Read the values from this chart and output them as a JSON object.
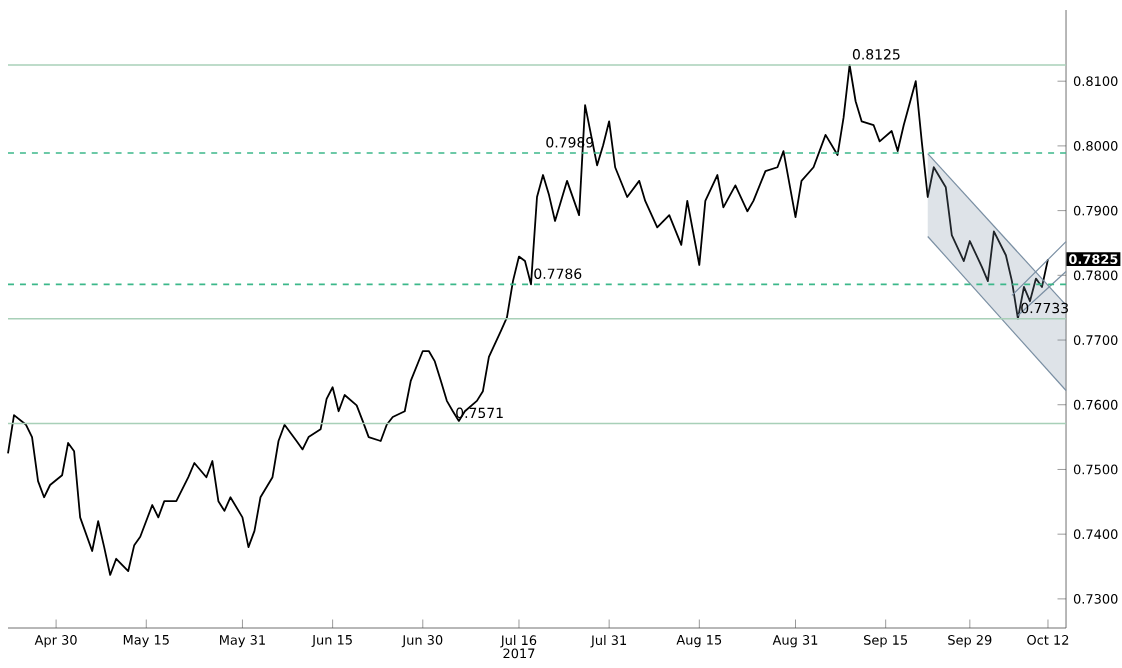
{
  "chart_data": {
    "type": "line",
    "x": [
      "2017-04-22",
      "2017-04-23",
      "2017-04-25",
      "2017-04-26",
      "2017-04-27",
      "2017-04-28",
      "2017-04-29",
      "2017-05-01",
      "2017-05-02",
      "2017-05-03",
      "2017-05-04",
      "2017-05-06",
      "2017-05-07",
      "2017-05-08",
      "2017-05-09",
      "2017-05-10",
      "2017-05-12",
      "2017-05-13",
      "2017-05-14",
      "2017-05-16",
      "2017-05-17",
      "2017-05-18",
      "2017-05-20",
      "2017-05-22",
      "2017-05-23",
      "2017-05-25",
      "2017-05-26",
      "2017-05-27",
      "2017-05-28",
      "2017-05-29",
      "2017-05-31",
      "2017-06-01",
      "2017-06-02",
      "2017-06-03",
      "2017-06-05",
      "2017-06-06",
      "2017-06-07",
      "2017-06-09",
      "2017-06-10",
      "2017-06-11",
      "2017-06-13",
      "2017-06-14",
      "2017-06-15",
      "2017-06-16",
      "2017-06-17",
      "2017-06-19",
      "2017-06-20",
      "2017-06-21",
      "2017-06-23",
      "2017-06-24",
      "2017-06-25",
      "2017-06-27",
      "2017-06-28",
      "2017-06-30",
      "2017-07-01",
      "2017-07-02",
      "2017-07-03",
      "2017-07-04",
      "2017-07-05",
      "2017-07-06",
      "2017-07-07",
      "2017-07-09",
      "2017-07-10",
      "2017-07-11",
      "2017-07-13",
      "2017-07-14",
      "2017-07-15",
      "2017-07-16",
      "2017-07-17",
      "2017-07-18",
      "2017-07-19",
      "2017-07-20",
      "2017-07-21",
      "2017-07-22",
      "2017-07-24",
      "2017-07-26",
      "2017-07-27",
      "2017-07-29",
      "2017-07-30",
      "2017-07-31",
      "2017-08-01",
      "2017-08-03",
      "2017-08-05",
      "2017-08-06",
      "2017-08-08",
      "2017-08-10",
      "2017-08-12",
      "2017-08-13",
      "2017-08-15",
      "2017-08-16",
      "2017-08-18",
      "2017-08-19",
      "2017-08-21",
      "2017-08-23",
      "2017-08-24",
      "2017-08-26",
      "2017-08-28",
      "2017-08-29",
      "2017-08-31",
      "2017-09-01",
      "2017-09-03",
      "2017-09-05",
      "2017-09-07",
      "2017-09-08",
      "2017-09-09",
      "2017-09-10",
      "2017-09-11",
      "2017-09-13",
      "2017-09-14",
      "2017-09-16",
      "2017-09-17",
      "2017-09-18",
      "2017-09-20",
      "2017-09-21",
      "2017-09-22",
      "2017-09-23",
      "2017-09-25",
      "2017-09-26",
      "2017-09-28",
      "2017-09-29",
      "2017-10-01",
      "2017-10-02",
      "2017-10-03",
      "2017-10-05",
      "2017-10-06",
      "2017-10-07",
      "2017-10-08",
      "2017-10-09",
      "2017-10-10",
      "2017-10-11",
      "2017-10-12"
    ],
    "series": [
      {
        "color": "#000000",
        "values": [
          0.7525,
          0.7584,
          0.7569,
          0.755,
          0.7482,
          0.7457,
          0.7476,
          0.7491,
          0.7541,
          0.7528,
          0.7426,
          0.7374,
          0.742,
          0.738,
          0.7337,
          0.7362,
          0.7343,
          0.7383,
          0.7396,
          0.7445,
          0.7426,
          0.7451,
          0.7451,
          0.7488,
          0.751,
          0.7488,
          0.7513,
          0.7451,
          0.7436,
          0.7457,
          0.7426,
          0.738,
          0.7405,
          0.7457,
          0.7488,
          0.7544,
          0.7569,
          0.7544,
          0.7531,
          0.755,
          0.7562,
          0.7609,
          0.7627,
          0.759,
          0.7615,
          0.7599,
          0.7575,
          0.755,
          0.7544,
          0.7569,
          0.7581,
          0.759,
          0.7637,
          0.7683,
          0.7683,
          0.7667,
          0.7637,
          0.7606,
          0.759,
          0.7575,
          0.759,
          0.7606,
          0.7621,
          0.7674,
          0.7714,
          0.7735,
          0.7791,
          0.7829,
          0.7822,
          0.7786,
          0.7921,
          0.7955,
          0.7924,
          0.7884,
          0.7946,
          0.7893,
          0.8063,
          0.797,
          0.8001,
          0.8038,
          0.7967,
          0.7921,
          0.7946,
          0.7915,
          0.7874,
          0.7893,
          0.7847,
          0.7915,
          0.7816,
          0.7915,
          0.7955,
          0.7905,
          0.7939,
          0.7899,
          0.7915,
          0.7961,
          0.7967,
          0.7992,
          0.789,
          0.7946,
          0.7967,
          0.8017,
          0.7986,
          0.8044,
          0.8125,
          0.8069,
          0.8038,
          0.8032,
          0.8007,
          0.8023,
          0.7992,
          0.8032,
          0.81,
          0.8007,
          0.7921,
          0.7967,
          0.7936,
          0.7862,
          0.7822,
          0.7853,
          0.7813,
          0.7791,
          0.7868,
          0.7831,
          0.7791,
          0.7733,
          0.7782,
          0.776,
          0.7795,
          0.7782,
          0.7825
        ]
      },
      {
        "color": "#7a8fa3",
        "x": [
          "2017-09-22",
          "2017-10-15"
        ],
        "values": [
          null,
          null
        ],
        "lower": [
          0.786,
          0.7622
        ],
        "upper": [
          0.7988,
          0.7754
        ]
      },
      {
        "color": "#7a8fa3",
        "x": [
          "2017-09-22",
          "2017-10-15"
        ],
        "values": [
          0.7988,
          0.7754
        ]
      },
      {
        "color": "#7a8fa3",
        "x": [
          "2017-09-22",
          "2017-10-15"
        ],
        "values": [
          0.786,
          0.7622
        ]
      },
      {
        "color": "#7a8fa3",
        "x": [
          "2017-10-07",
          "2017-10-15"
        ],
        "values": [
          0.7738,
          0.7806
        ]
      },
      {
        "color": "#7a8fa3",
        "x": [
          "2017-10-06",
          "2017-10-15"
        ],
        "values": [
          0.7769,
          0.7852
        ]
      }
    ],
    "xlim": [
      "2017-04-22",
      "2017-10-15"
    ],
    "xticks": [
      {
        "value": "2017-04-30",
        "label": "Apr 30"
      },
      {
        "value": "2017-05-15",
        "label": "May 15"
      },
      {
        "value": "2017-05-31",
        "label": "May 31"
      },
      {
        "value": "2017-06-15",
        "label": "Jun 15"
      },
      {
        "value": "2017-06-30",
        "label": "Jun 30"
      },
      {
        "value": "2017-07-16",
        "label": "Jul 16"
      },
      {
        "value": "2017-07-31",
        "label": "Jul 31"
      },
      {
        "value": "2017-08-15",
        "label": "Aug 15"
      },
      {
        "value": "2017-08-31",
        "label": "Aug 31"
      },
      {
        "value": "2017-09-15",
        "label": "Sep 15"
      },
      {
        "value": "2017-09-29",
        "label": "Sep 29"
      },
      {
        "value": "2017-10-12",
        "label": "Oct 12"
      }
    ],
    "ylim": [
      0.7255,
      0.821
    ],
    "yticks": [
      {
        "value": 0.73,
        "label": "0.7300"
      },
      {
        "value": 0.74,
        "label": "0.7400"
      },
      {
        "value": 0.75,
        "label": "0.7500"
      },
      {
        "value": 0.76,
        "label": "0.7600"
      },
      {
        "value": 0.77,
        "label": "0.7700"
      },
      {
        "value": 0.78,
        "label": "0.7800"
      },
      {
        "value": 0.79,
        "label": "0.7900"
      },
      {
        "value": 0.8,
        "label": "0.8000"
      },
      {
        "value": 0.81,
        "label": "0.8100"
      }
    ],
    "ref_lines": [
      {
        "axis": "y",
        "value": 0.8125,
        "color": "#a8d0b8",
        "line_style": "solid"
      },
      {
        "axis": "y",
        "value": 0.7989,
        "color": "#3cb88a",
        "line_style": "dashed"
      },
      {
        "axis": "y",
        "value": 0.7786,
        "color": "#3cb88a",
        "line_style": "dashed"
      },
      {
        "axis": "y",
        "value": 0.7733,
        "color": "#a8d0b8",
        "line_style": "solid"
      },
      {
        "axis": "y",
        "value": 0.7571,
        "color": "#a8d0b8",
        "line_style": "solid"
      }
    ],
    "annotations": [
      {
        "text": "0.8125",
        "x": "2017-09-09",
        "y": 0.8125
      },
      {
        "text": "0.7989",
        "x": "2017-07-20",
        "y": 0.7989
      },
      {
        "text": "0.7786",
        "x": "2017-07-18",
        "y": 0.7786
      },
      {
        "text": "0.7733",
        "x": "2017-10-07",
        "y": 0.7733
      },
      {
        "text": "0.7571",
        "x": "2017-07-05",
        "y": 0.7571
      },
      {
        "text": "0.7825",
        "x": "2017-10-12",
        "y": 0.7825
      },
      "2017"
    ],
    "grid": false,
    "marker": "none",
    "line_style": "solid"
  }
}
